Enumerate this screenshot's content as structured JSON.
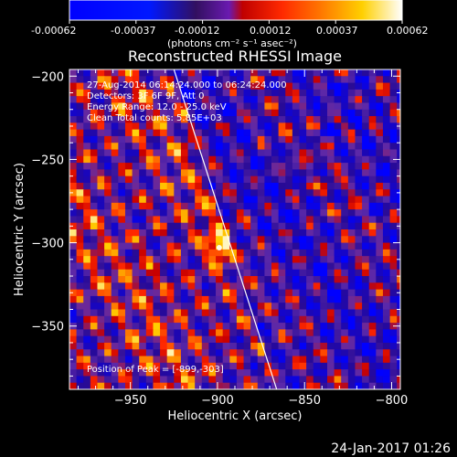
{
  "footer": {
    "timestamp": "24-Jan-2017 01:26"
  },
  "colorbar": {
    "tick_labels": [
      "-0.00062",
      "-0.00037",
      "-0.00012",
      "0.00012",
      "0.00037",
      "0.00062"
    ],
    "unit_label": "(photons cm⁻² s⁻¹ asec⁻²)",
    "range": [
      -0.00062,
      0.00062
    ]
  },
  "annotations": {
    "time_range": "27-Aug-2014 06:14:24.000 to 06:24:24.000",
    "detectors": "Detectors: 3F 6F 9F, Att 0",
    "energy_range": "Energy Range: 12.0 - 25.0 keV",
    "clean_counts": "Clean    Total counts: 5.85E+03",
    "peak_position": "Position of Peak = [-899,-303]"
  },
  "chart_data": {
    "type": "heatmap",
    "title": "Reconstructed RHESSI Image",
    "xlabel": "Heliocentric X (arcsec)",
    "ylabel": "Heliocentric Y (arcsec)",
    "xlim": [
      -985,
      -795
    ],
    "ylim": [
      -388,
      -196
    ],
    "x_ticks": [
      -950,
      -900,
      -850,
      -800
    ],
    "y_ticks": [
      -200,
      -250,
      -300,
      -350
    ],
    "x_tick_labels": [
      "−950",
      "−900",
      "−850",
      "−800"
    ],
    "y_tick_labels": [
      "−200",
      "−250",
      "−300",
      "−350"
    ],
    "peak": [
      -899,
      -303
    ],
    "limb_line": [
      [
        -925,
        -196
      ],
      [
        -866,
        -388
      ]
    ],
    "grid": false,
    "colormap_colors": [
      "#0000ff",
      "#3c0a8c",
      "#5a2aa6",
      "#ff0000",
      "#ff8000",
      "#ffd000",
      "#ffffff"
    ]
  }
}
